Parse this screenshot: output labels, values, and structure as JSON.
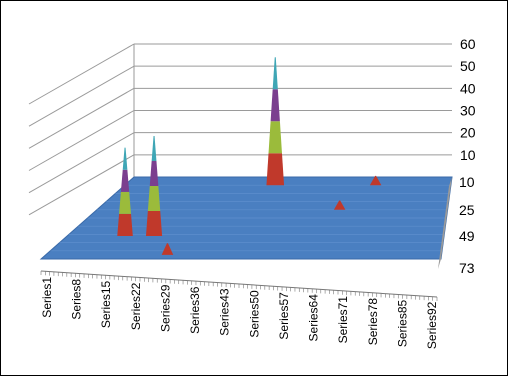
{
  "chart_data": {
    "type": "surface-3d",
    "title": "",
    "x_categories": [
      "Series1",
      "Series8",
      "Series15",
      "Series22",
      "Series29",
      "Series36",
      "Series43",
      "Series50",
      "Series57",
      "Series64",
      "Series71",
      "Series78",
      "Series85",
      "Series92"
    ],
    "depth_categories": [
      "10",
      "25",
      "49",
      "73"
    ],
    "z_axis": {
      "ticks": [
        10,
        20,
        30,
        40,
        50,
        60
      ],
      "range": [
        0,
        60
      ]
    },
    "grid": true,
    "surface_color": "#4a7fc1",
    "spike_colors": [
      "#c0392b",
      "#9bbb3b",
      "#7b3f8f",
      "#3fa6b5"
    ],
    "peaks": [
      {
        "series": "Series15",
        "depth": "49",
        "value": 38
      },
      {
        "series": "Series22",
        "depth": "49",
        "value": 43
      },
      {
        "series": "Series29",
        "depth": "73",
        "value": 5
      },
      {
        "series": "Series43",
        "depth": "10",
        "value": 55
      },
      {
        "series": "Series64",
        "depth": "25",
        "value": 4
      },
      {
        "series": "Series71",
        "depth": "10",
        "value": 4
      }
    ]
  }
}
